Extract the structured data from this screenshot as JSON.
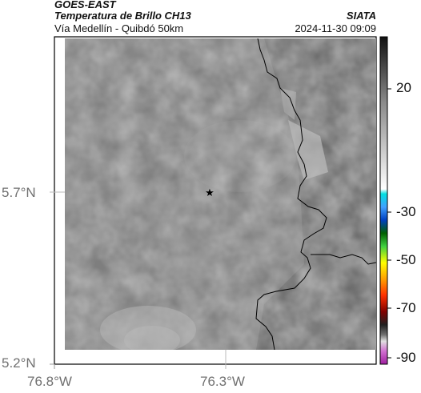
{
  "header": {
    "satellite": "GOES-EAST",
    "product": "Temperatura de Brillo CH13",
    "region": "Vía Medellín - Quibdó 50km",
    "agency": "SIATA",
    "datetime": "2024-11-30 09:09"
  },
  "map": {
    "y_ticks": [
      "5.7°N",
      "5.2°N"
    ],
    "x_ticks": [
      "76.8°W",
      "76.3°W"
    ],
    "marker_icon": "star-icon"
  },
  "colorbar": {
    "tick_labels": [
      "20",
      "-30",
      "-50",
      "-70",
      "-90"
    ]
  }
}
